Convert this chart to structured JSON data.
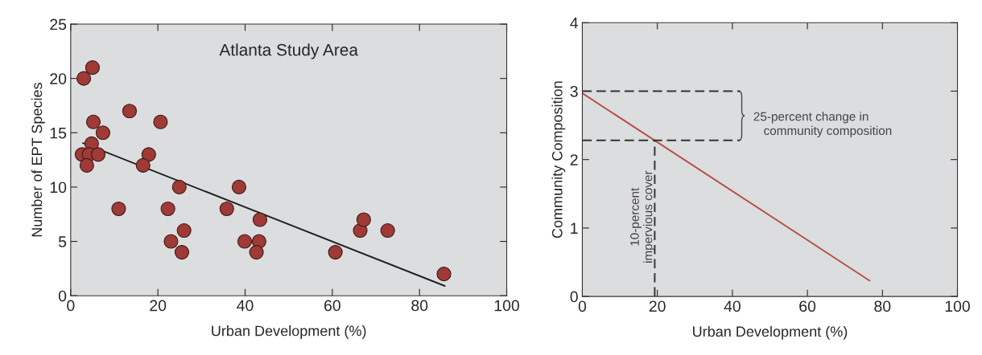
{
  "chart_data": [
    {
      "type": "scatter",
      "title": "Atlanta Study Area",
      "xlabel": "Urban Development (%)",
      "ylabel": "Number of EPT Species",
      "xlim": [
        0,
        100
      ],
      "ylim": [
        0,
        25
      ],
      "xticks": [
        0,
        20,
        40,
        60,
        80,
        100
      ],
      "yticks": [
        0,
        5,
        10,
        15,
        20,
        25
      ],
      "grid": false,
      "marker": "circle",
      "series": [
        {
          "color": "#a03a36",
          "x": [
            3,
            5,
            5.2,
            7.4,
            4.8,
            2.6,
            4.2,
            6.3,
            3.7,
            13.5,
            20.6,
            17.9,
            16.6,
            11,
            24.9,
            22.3,
            23,
            25.5,
            26,
            38.6,
            35.8,
            39.9,
            43.4,
            43.2,
            42.6,
            60.7,
            66.4,
            67.2,
            72.7,
            85.6
          ],
          "values": [
            20,
            21,
            16,
            15,
            14,
            13,
            13,
            13,
            12,
            17,
            16,
            13,
            12,
            8,
            10,
            8,
            5,
            4,
            6,
            10,
            8,
            5,
            7,
            5,
            4,
            4,
            6,
            7,
            6,
            2
          ]
        },
        {
          "type": "line",
          "color": "#222222",
          "marker": "none",
          "x": [
            2.8,
            85.8
          ],
          "values": [
            14.05,
            0.9
          ]
        }
      ]
    },
    {
      "type": "line",
      "xlabel": "Urban Development (%)",
      "ylabel": "Community Composition",
      "xlim": [
        0,
        100
      ],
      "ylim": [
        0,
        4
      ],
      "xticks": [
        0,
        20,
        40,
        60,
        80,
        100
      ],
      "yticks": [
        0,
        1,
        2,
        3,
        4
      ],
      "grid": false,
      "annotations": [
        {
          "text": "25-percent change in\n   community composition",
          "x": 42,
          "y": 3
        },
        "10-percent\nimpervious cover"
      ],
      "series": [
        {
          "color": "#b5504a",
          "x": [
            0,
            76.6
          ],
          "values": [
            2.97,
            0.23
          ]
        },
        {
          "type": "line",
          "color": "#333333",
          "line_style": "dashed",
          "x": [
            0,
            42
          ],
          "values": [
            3,
            3
          ]
        },
        {
          "type": "line",
          "color": "#333333",
          "line_style": "dashed",
          "x": [
            0,
            42
          ],
          "values": [
            2.28,
            2.28
          ]
        },
        {
          "type": "line",
          "color": "#333333",
          "line_style": "dashed",
          "x": [
            19.3,
            19.3
          ],
          "values": [
            0,
            2.28
          ]
        }
      ]
    }
  ]
}
